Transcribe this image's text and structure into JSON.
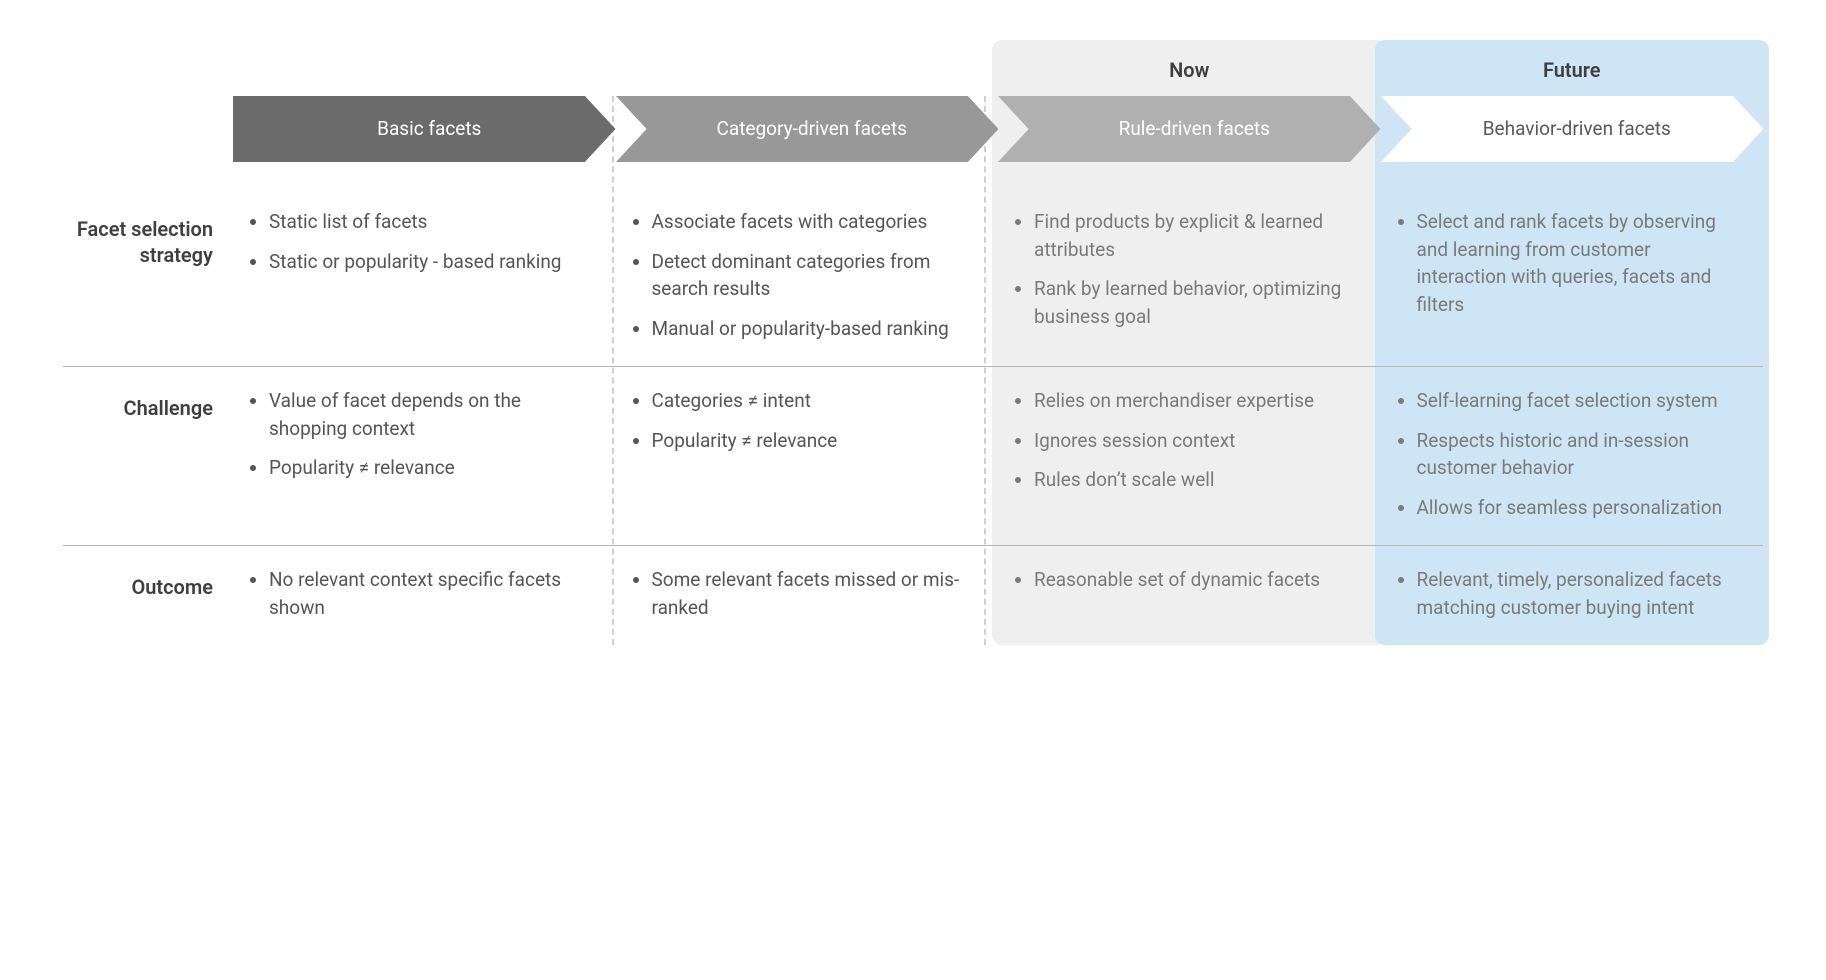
{
  "colors": {
    "bg_now": "#efefef",
    "bg_future": "#cde5f5",
    "chev1": "#6b6b6b",
    "chev2": "#989898",
    "chev3": "#b0b0b0",
    "chev4": "#ffffff",
    "divider": "#b5b5b5",
    "dashed": "#cfcfcf",
    "text_dark": "#4a4a4a",
    "text_light": "#7a7a7a"
  },
  "time_labels": {
    "now": "Now",
    "future": "Future"
  },
  "columns": [
    {
      "title": "Basic facets"
    },
    {
      "title": "Category-driven facets"
    },
    {
      "title": "Rule-driven facets"
    },
    {
      "title": "Behavior-driven facets"
    }
  ],
  "rows": [
    {
      "label": "Facet selection strategy",
      "cells": [
        [
          "Static list of facets",
          "Static or popularity - based ranking"
        ],
        [
          "Associate facets with categories",
          "Detect dominant categories from search results",
          "Manual or popularity-based ranking"
        ],
        [
          "Find products by explicit & learned attributes",
          "Rank by learned behavior, optimizing business goal"
        ],
        [
          "Select and rank facets by observing and learning from customer interaction with queries, facets and filters"
        ]
      ]
    },
    {
      "label": "Challenge",
      "cells": [
        [
          "Value of facet depends on the shopping context",
          "Popularity ≠ relevance"
        ],
        [
          "Categories ≠ intent",
          "Popularity ≠ relevance"
        ],
        [
          "Relies on merchandiser expertise",
          "Ignores session context",
          "Rules don’t scale well"
        ],
        [
          "Self-learning facet selection system",
          "Respects historic and in-session customer behavior",
          "Allows for seamless personalization"
        ]
      ]
    },
    {
      "label": "Outcome",
      "cells": [
        [
          "No relevant context specific facets shown"
        ],
        [
          "Some relevant facets missed or mis-ranked"
        ],
        [
          "Reasonable set of dynamic facets"
        ],
        [
          "Relevant, timely, personalized facets matching customer buying intent"
        ]
      ]
    }
  ]
}
